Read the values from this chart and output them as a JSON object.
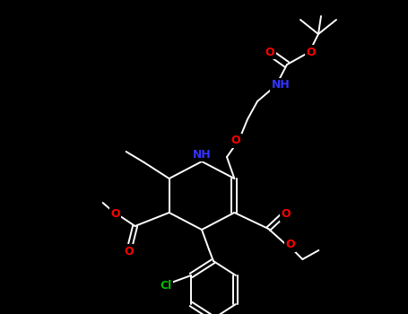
{
  "background_color": "#000000",
  "bond_color": "#ffffff",
  "atom_colors": {
    "O": "#ff0000",
    "N": "#3333ff",
    "Cl": "#00bb00",
    "C": "#ffffff"
  },
  "lw": 1.4,
  "fontsize": 8.5
}
